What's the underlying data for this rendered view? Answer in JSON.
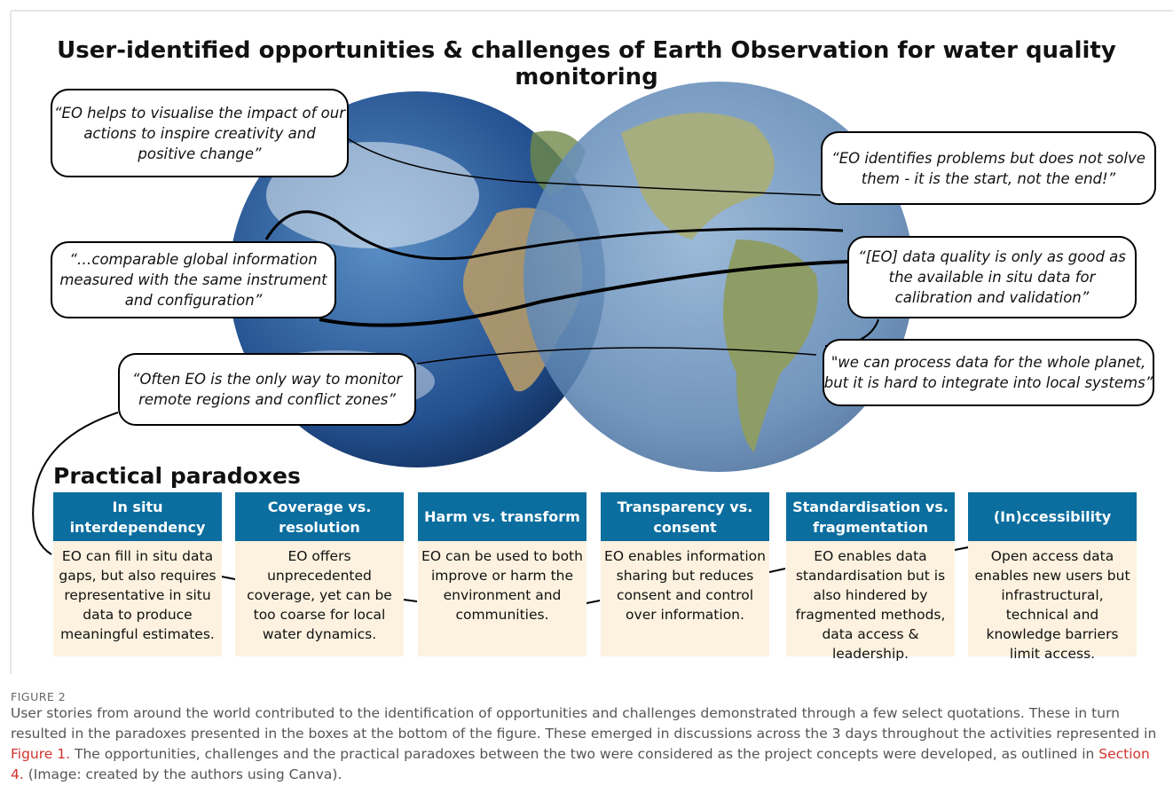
{
  "figure": {
    "title": "User-identified opportunities & challenges of Earth Observation for water quality monitoring",
    "quotes": [
      {
        "lines": [
          "“EO helps to visualise the impact of our",
          "actions to inspire creativity and",
          "positive change”"
        ]
      },
      {
        "lines": [
          "“EO identifies problems but does not solve",
          "them - it is the start, not the end!”"
        ]
      },
      {
        "lines": [
          "“…comparable global information",
          "measured with the same instrument",
          "and configuration”"
        ]
      },
      {
        "lines": [
          "“[EO] data quality is only as good as",
          "the available in situ data for",
          "calibration and validation”"
        ]
      },
      {
        "lines": [
          "“Often EO is the only way to monitor",
          "remote regions and conflict zones”"
        ]
      },
      {
        "lines": [
          "\"we can process data for the whole planet,",
          "but it is hard to integrate into local systems”"
        ]
      }
    ],
    "paradoxes_heading": "Practical paradoxes",
    "paradoxes": [
      {
        "title": [
          "In situ",
          "interdependency"
        ],
        "text": [
          "EO can fill in situ data",
          "gaps, but also requires",
          "representative in situ",
          "data to produce",
          "meaningful estimates."
        ]
      },
      {
        "title": [
          "Coverage vs.",
          "resolution"
        ],
        "text": [
          "EO offers",
          "unprecedented",
          "coverage, yet can be",
          "too coarse for local",
          "water dynamics."
        ]
      },
      {
        "title": [
          "Harm vs. transform"
        ],
        "text": [
          "EO can be used to both",
          "improve or harm the",
          "environment and",
          "communities."
        ]
      },
      {
        "title": [
          "Transparency vs.",
          "consent"
        ],
        "text": [
          "EO enables information",
          "sharing but reduces",
          "consent and control",
          "over information."
        ]
      },
      {
        "title": [
          "Standardisation vs.",
          "fragmentation"
        ],
        "text": [
          "EO enables data",
          "standardisation but is",
          "also hindered by",
          "fragmented methods,",
          "data access &",
          "leadership."
        ]
      },
      {
        "title": [
          "(In)ccessibility"
        ],
        "text": [
          "Open access data",
          "enables new users but",
          "infrastructural,",
          "technical and",
          "knowledge barriers",
          "limit access."
        ]
      }
    ]
  },
  "caption": {
    "label": "FIGURE 2",
    "parts": [
      {
        "text": "User stories from around the world contributed to the identification of opportunities and challenges demonstrated through a few select quotations. These in turn resulted in the paradoxes presented in the boxes at the bottom of the figure. These emerged in discussions across the 3 days throughout the activities represented in "
      },
      {
        "text": "Figure 1.",
        "link": true
      },
      {
        "text": " The opportunities, challenges and the practical paradoxes between the two were considered as the project concepts were developed, as outlined in "
      },
      {
        "text": "Section 4.",
        "link": true
      },
      {
        "text": " (Image: created by the authors using Canva)."
      }
    ]
  }
}
